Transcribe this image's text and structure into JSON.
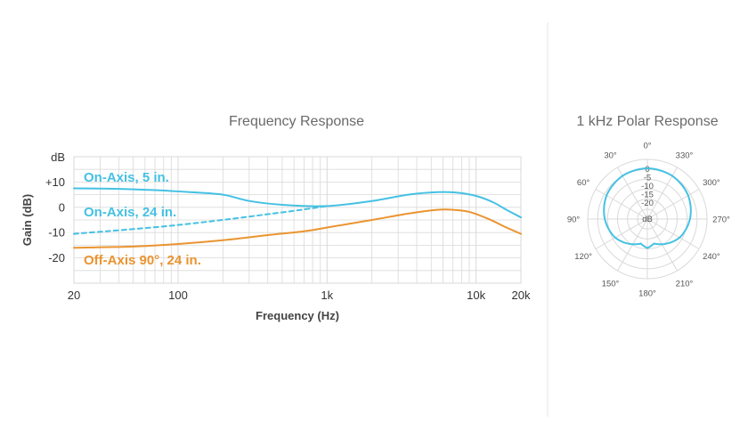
{
  "colors": {
    "on_axis": "#45c1e3",
    "off_axis": "#ea9430",
    "grid": "#d9d9d9",
    "divider": "#e6e6e6"
  },
  "chart_data": [
    {
      "type": "line",
      "title": "Frequency Response",
      "xlabel": "Frequency (Hz)",
      "ylabel": "Gain (dB)",
      "xscale": "log",
      "xlim": [
        20,
        20000
      ],
      "ylim": [
        -30,
        20
      ],
      "unit_label": "dB",
      "x_ticks": [
        {
          "value": 20,
          "label": "20"
        },
        {
          "value": 100,
          "label": "100"
        },
        {
          "value": 1000,
          "label": "1k"
        },
        {
          "value": 10000,
          "label": "10k"
        },
        {
          "value": 20000,
          "label": "20k"
        }
      ],
      "y_ticks": [
        {
          "value": 10,
          "label": "+10"
        },
        {
          "value": 0,
          "label": "0"
        },
        {
          "value": -10,
          "label": "-10"
        },
        {
          "value": -20,
          "label": "-20"
        }
      ],
      "grid": true,
      "series": [
        {
          "name": "On-Axis, 5 in.",
          "color": "#45c1e3",
          "style": "solid",
          "points": [
            [
              20,
              7.5
            ],
            [
              40,
              7.3
            ],
            [
              70,
              6.8
            ],
            [
              120,
              6
            ],
            [
              200,
              5
            ],
            [
              300,
              2.5
            ],
            [
              500,
              1
            ],
            [
              1000,
              0.5
            ],
            [
              2000,
              2.5
            ],
            [
              3500,
              5
            ],
            [
              5500,
              6
            ],
            [
              7500,
              5.8
            ],
            [
              10000,
              4.5
            ],
            [
              13000,
              2
            ],
            [
              16000,
              -1
            ],
            [
              20000,
              -4
            ]
          ]
        },
        {
          "name": "On-Axis, 24 in.",
          "color": "#45c1e3",
          "style": "dashed",
          "points": [
            [
              20,
              -10.5
            ],
            [
              100,
              -7
            ],
            [
              500,
              -2
            ],
            [
              1000,
              0.5
            ]
          ]
        },
        {
          "name": "Off-Axis 90°, 24 in.",
          "color": "#ea9430",
          "style": "solid",
          "points": [
            [
              20,
              -16
            ],
            [
              50,
              -15.5
            ],
            [
              100,
              -14.5
            ],
            [
              200,
              -13
            ],
            [
              400,
              -11
            ],
            [
              700,
              -9.5
            ],
            [
              1000,
              -8
            ],
            [
              2000,
              -5
            ],
            [
              3500,
              -2.5
            ],
            [
              5500,
              -1
            ],
            [
              7000,
              -1
            ],
            [
              9000,
              -1.8
            ],
            [
              12000,
              -4.5
            ],
            [
              16000,
              -8
            ],
            [
              20000,
              -10.5
            ]
          ]
        }
      ]
    },
    {
      "type": "polar",
      "title": "1 kHz Polar Response",
      "unit_label": "dB",
      "r_ticks": [
        "0",
        "-5",
        "-10",
        "-15",
        "-20"
      ],
      "angle_labels": [
        {
          "angle": 0,
          "label": "0°"
        },
        {
          "angle": 30,
          "label": "330°"
        },
        {
          "angle": 60,
          "label": "300°"
        },
        {
          "angle": 90,
          "label": "270°"
        },
        {
          "angle": 120,
          "label": "240°"
        },
        {
          "angle": 150,
          "label": "210°"
        },
        {
          "angle": 180,
          "label": "180°"
        },
        {
          "angle": 210,
          "label": "150°"
        },
        {
          "angle": 240,
          "label": "120°"
        },
        {
          "angle": 270,
          "label": "90°"
        },
        {
          "angle": 300,
          "label": "60°"
        },
        {
          "angle": 330,
          "label": "30°"
        }
      ],
      "pattern_db": [
        [
          0,
          0
        ],
        [
          30,
          -0.5
        ],
        [
          60,
          -2
        ],
        [
          90,
          -4.5
        ],
        [
          120,
          -7.5
        ],
        [
          150,
          -12
        ],
        [
          165,
          -14
        ],
        [
          180,
          -12
        ],
        [
          195,
          -14
        ],
        [
          210,
          -12
        ],
        [
          240,
          -7.5
        ],
        [
          270,
          -4.5
        ],
        [
          300,
          -2
        ],
        [
          330,
          -0.5
        ],
        [
          360,
          0
        ]
      ],
      "color": "#45c1e3"
    }
  ]
}
